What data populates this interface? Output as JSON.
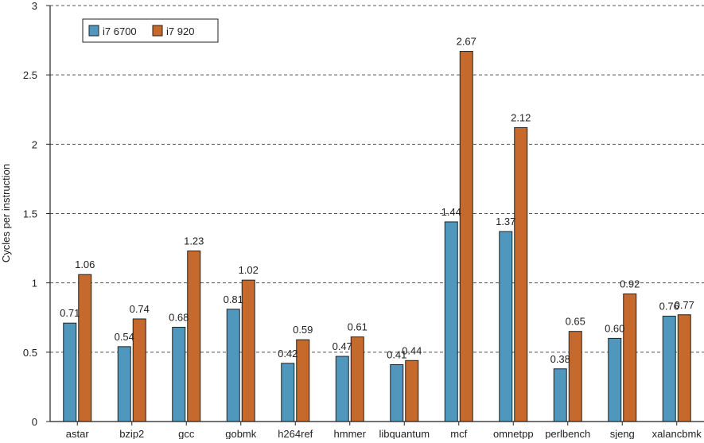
{
  "chart_data": {
    "type": "bar",
    "title": "",
    "xlabel": "",
    "ylabel": "Cycles per instruction",
    "ylim": [
      0,
      3
    ],
    "yticks": [
      0,
      0.5,
      1,
      1.5,
      2,
      2.5,
      3
    ],
    "ytick_labels": [
      "0",
      "0.5",
      "1",
      "1.5",
      "2",
      "2.5",
      "3"
    ],
    "grid": "horizontal dashed",
    "legend_position": "top-left",
    "categories": [
      "astar",
      "bzip2",
      "gcc",
      "gobmk",
      "h264ref",
      "hmmer",
      "libquantum",
      "mcf",
      "omnetpp",
      "perlbench",
      "sjeng",
      "xalancbmk"
    ],
    "series": [
      {
        "name": "i7 6700",
        "color": "#4f97bd",
        "values": [
          0.71,
          0.54,
          0.68,
          0.81,
          0.42,
          0.47,
          0.41,
          1.44,
          1.37,
          0.38,
          0.6,
          0.76
        ],
        "labels": [
          "0.71",
          "0.54",
          "0.68",
          "0.81",
          "0.42",
          "0.47",
          "0.41",
          "1.44",
          "1.37",
          "0.38",
          "0.60",
          "0.76"
        ]
      },
      {
        "name": "i7 920",
        "color": "#c6692c",
        "values": [
          1.06,
          0.74,
          1.23,
          1.02,
          0.59,
          0.61,
          0.44,
          2.67,
          2.12,
          0.65,
          0.92,
          0.77
        ],
        "labels": [
          "1.06",
          "0.74",
          "1.23",
          "1.02",
          "0.59",
          "0.61",
          "0.44",
          "2.67",
          "2.12",
          "0.65",
          "0.92",
          "0.77"
        ]
      }
    ]
  }
}
